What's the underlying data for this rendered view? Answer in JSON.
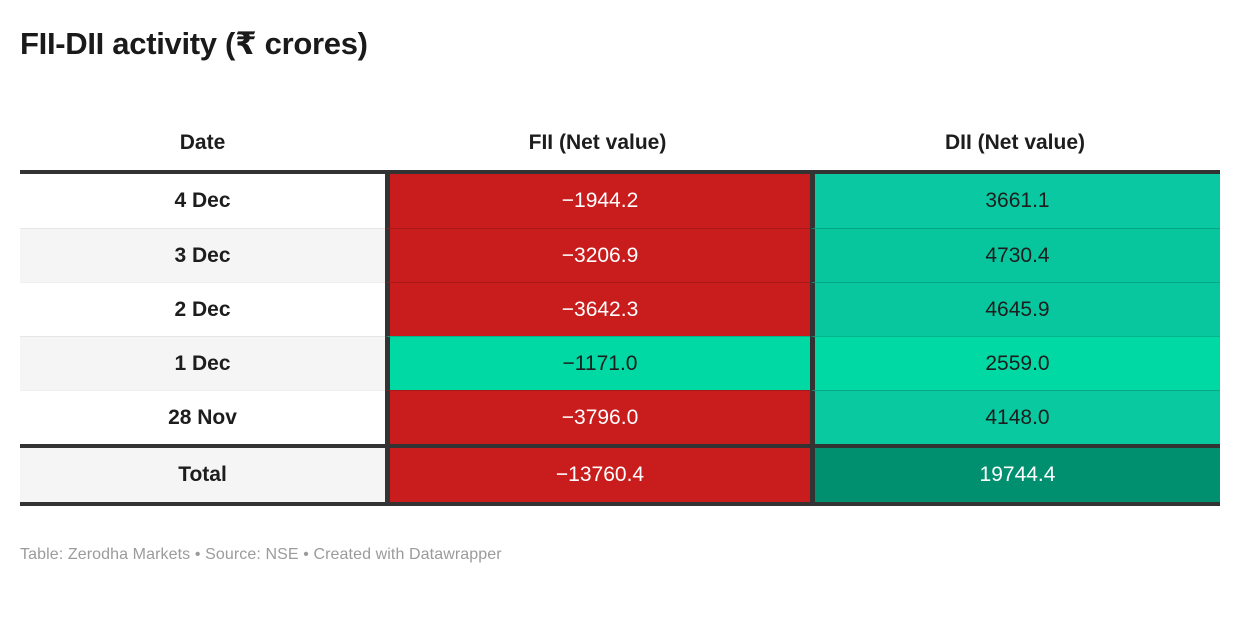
{
  "title": "FII-DII activity (₹ crores)",
  "footer": "Table: Zerodha Markets • Source: NSE • Created with Datawrapper",
  "colors": {
    "negative_red": "#c91d1d",
    "positive_teal": "#0ac8a1",
    "bright_green": "#00d9a4",
    "total_green": "#00906f",
    "border_dark": "#333333",
    "row_alt_bg": "#f5f5f5",
    "text_dark": "#1d1d1d",
    "text_light": "#ffffff",
    "footer_text": "#9b9b9b"
  },
  "chart_data": {
    "type": "table",
    "title": "FII-DII activity (₹ crores)",
    "unit": "₹ crores",
    "columns": [
      "Date",
      "FII (Net value)",
      "DII (Net value)"
    ],
    "rows": [
      {
        "label": "4 Dec",
        "row_bg": "#ffffff",
        "is_total": false,
        "fii": {
          "value": -1944.2,
          "display": "−1944.2",
          "bg": "#c91d1d",
          "fg": "#ffffff"
        },
        "dii": {
          "value": 3661.1,
          "display": "3661.1",
          "bg": "#0ac8a1",
          "fg": "#1d1d1d"
        }
      },
      {
        "label": "3 Dec",
        "row_bg": "#f5f5f5",
        "is_total": false,
        "fii": {
          "value": -3206.9,
          "display": "−3206.9",
          "bg": "#c91d1d",
          "fg": "#ffffff"
        },
        "dii": {
          "value": 4730.4,
          "display": "4730.4",
          "bg": "#07c69e",
          "fg": "#1d1d1d"
        }
      },
      {
        "label": "2 Dec",
        "row_bg": "#ffffff",
        "is_total": false,
        "fii": {
          "value": -3642.3,
          "display": "−3642.3",
          "bg": "#c91d1d",
          "fg": "#ffffff"
        },
        "dii": {
          "value": 4645.9,
          "display": "4645.9",
          "bg": "#08c79f",
          "fg": "#1d1d1d"
        }
      },
      {
        "label": "1 Dec",
        "row_bg": "#f5f5f5",
        "is_total": false,
        "fii": {
          "value": -1171.0,
          "display": "−1171.0",
          "bg": "#00d9a4",
          "fg": "#1d1d1d"
        },
        "dii": {
          "value": 2559.0,
          "display": "2559.0",
          "bg": "#00d9a4",
          "fg": "#1d1d1d"
        }
      },
      {
        "label": "28 Nov",
        "row_bg": "#ffffff",
        "is_total": false,
        "fii": {
          "value": -3796.0,
          "display": "−3796.0",
          "bg": "#c91d1d",
          "fg": "#ffffff"
        },
        "dii": {
          "value": 4148.0,
          "display": "4148.0",
          "bg": "#09c9a1",
          "fg": "#1d1d1d"
        }
      },
      {
        "label": "Total",
        "row_bg": "#f5f5f5",
        "is_total": true,
        "fii": {
          "value": -13760.4,
          "display": "−13760.4",
          "bg": "#c91d1d",
          "fg": "#ffffff"
        },
        "dii": {
          "value": 19744.4,
          "display": "19744.4",
          "bg": "#00906f",
          "fg": "#ffffff"
        }
      }
    ]
  }
}
